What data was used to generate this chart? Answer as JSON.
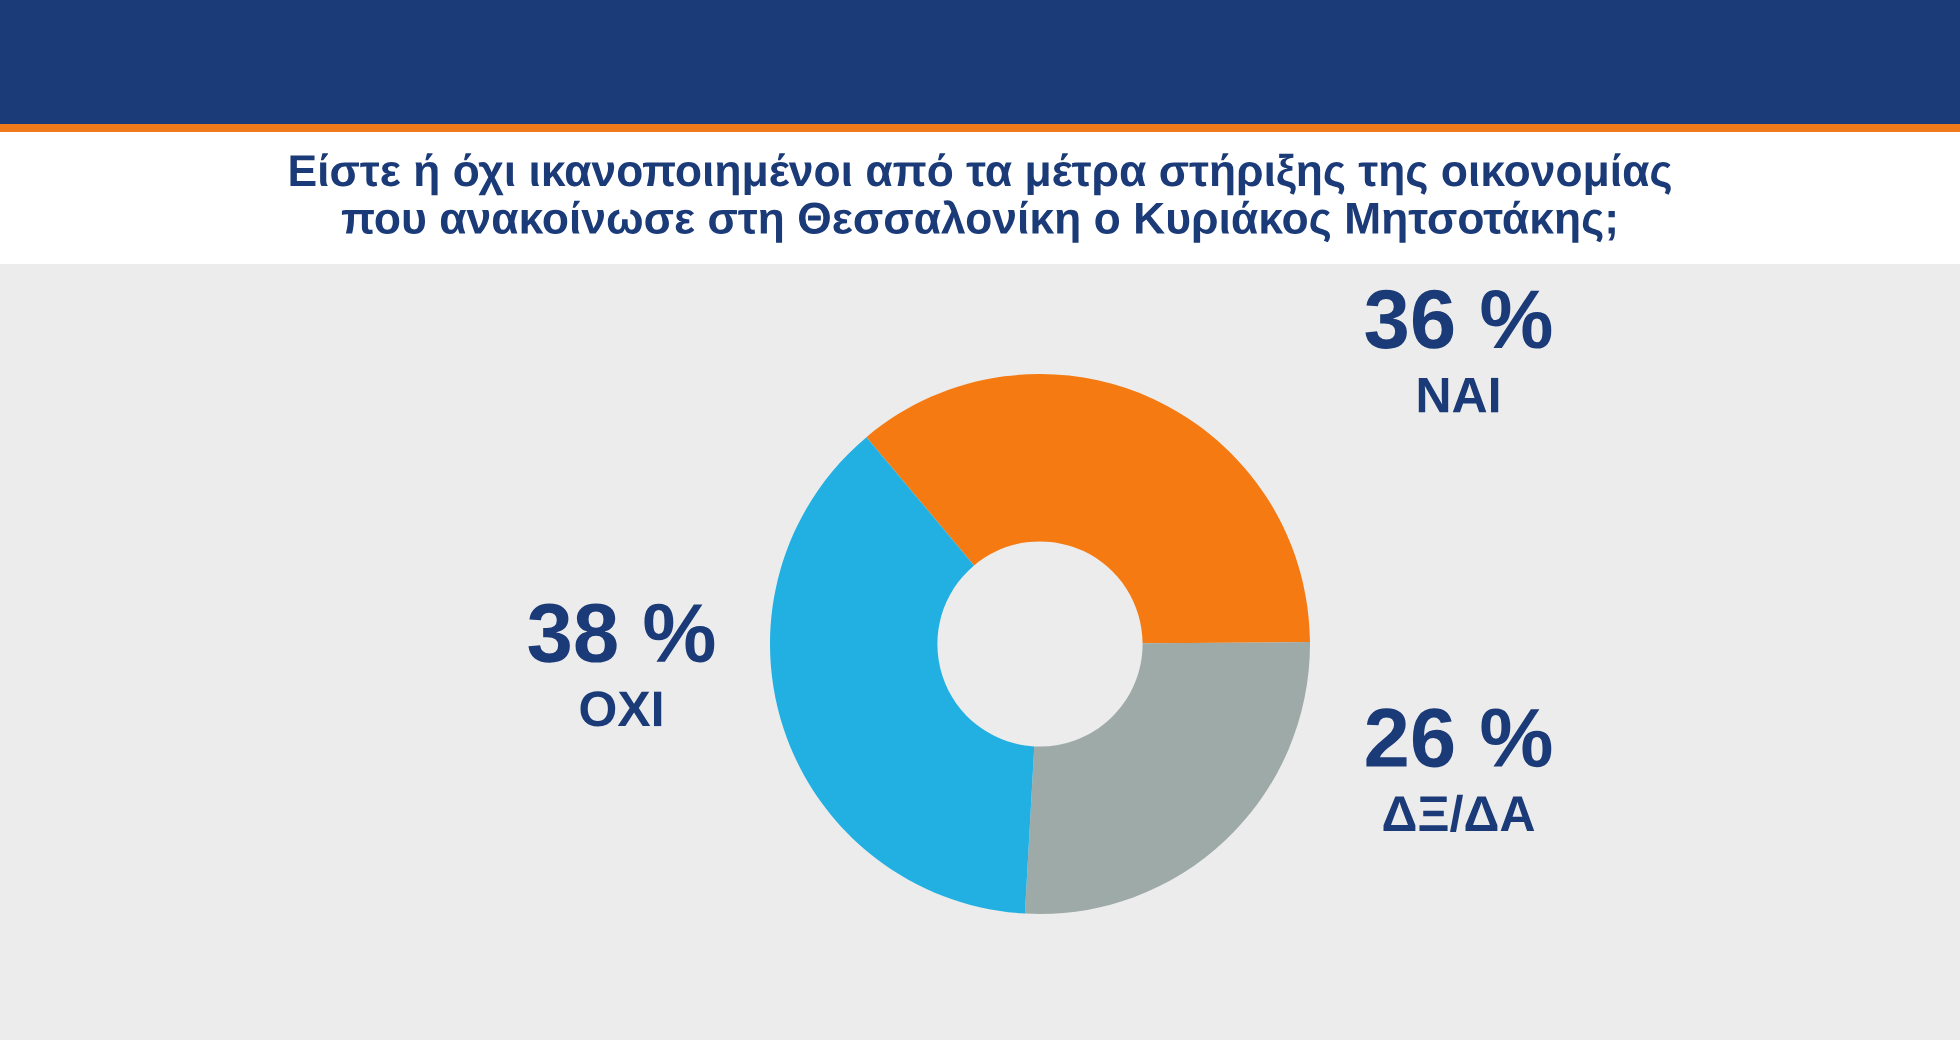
{
  "chart_data": {
    "type": "donut",
    "title": "Είστε ή όχι ικανοποιημένοι από τα μέτρα στήριξης της οικονομίας\nπου ανακοίνωσε στη Θεσσαλονίκη ο Κυριάκος Μητσοτάκης;",
    "categories": [
      "ΝΑΙ",
      "ΔΞ/ΔΑ",
      "ΟΧΙ"
    ],
    "values": [
      36,
      26,
      38
    ],
    "colors": [
      "#f57a12",
      "#9eaaa8",
      "#22b0e2"
    ],
    "value_labels": [
      "36 %",
      "26 %",
      "38 %"
    ]
  }
}
